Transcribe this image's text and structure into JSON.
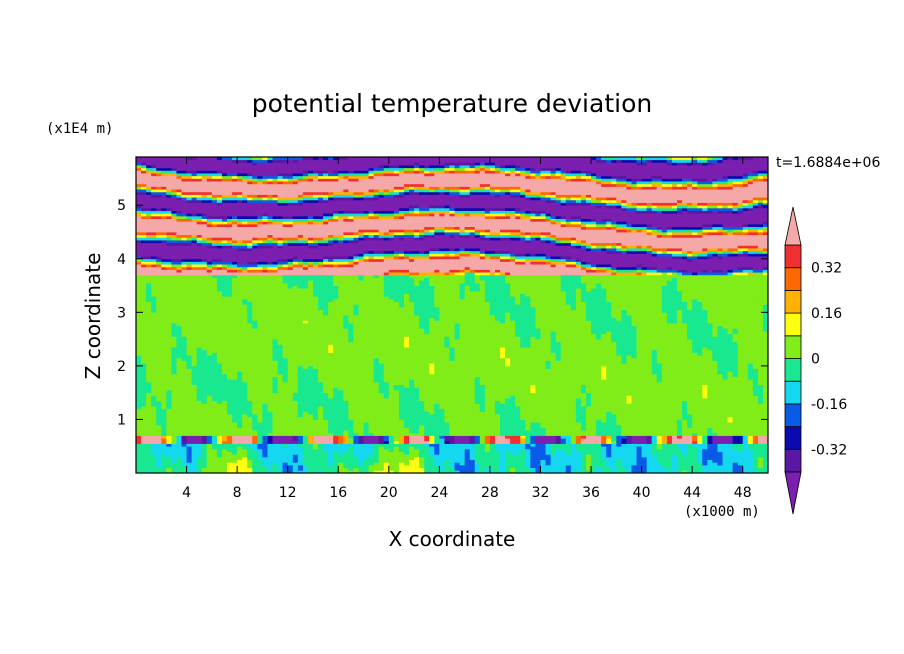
{
  "chart_data": {
    "type": "heatmap",
    "title": "potential temperature deviation",
    "xlabel": "X coordinate",
    "ylabel": "Z coordinate",
    "x_unit": "(x1000 m)",
    "y_unit": "(x1E4 m)",
    "time_label": "t=1.6884e+06",
    "xlim": [
      0,
      50
    ],
    "ylim": [
      0,
      5.9
    ],
    "x_ticks": [
      4,
      8,
      12,
      16,
      20,
      24,
      28,
      32,
      36,
      40,
      44,
      48
    ],
    "x_tick_labels": [
      "4",
      "8",
      "12",
      "16",
      "20",
      "24",
      "28",
      "32",
      "36",
      "40",
      "44",
      "48"
    ],
    "y_ticks": [
      1,
      2,
      3,
      4,
      5
    ],
    "y_tick_labels": [
      "1",
      "2",
      "3",
      "4",
      "5"
    ],
    "colorbar": {
      "levels": [
        -0.4,
        -0.32,
        -0.24,
        -0.16,
        -0.08,
        0,
        0.08,
        0.16,
        0.24,
        0.32,
        0.4
      ],
      "colors": [
        "#7a1fb0",
        "#5a17a3",
        "#0a0ab0",
        "#0a5ae8",
        "#14d8f0",
        "#18e890",
        "#80ec18",
        "#ffff10",
        "#ffb000",
        "#ff6800",
        "#f03030",
        "#f5a8a8"
      ],
      "tick_values": [
        0.32,
        0.16,
        0,
        -0.16,
        -0.32
      ],
      "tick_labels": [
        "0.32",
        "0.16",
        "0",
        "-0.16",
        "-0.32"
      ]
    }
  }
}
